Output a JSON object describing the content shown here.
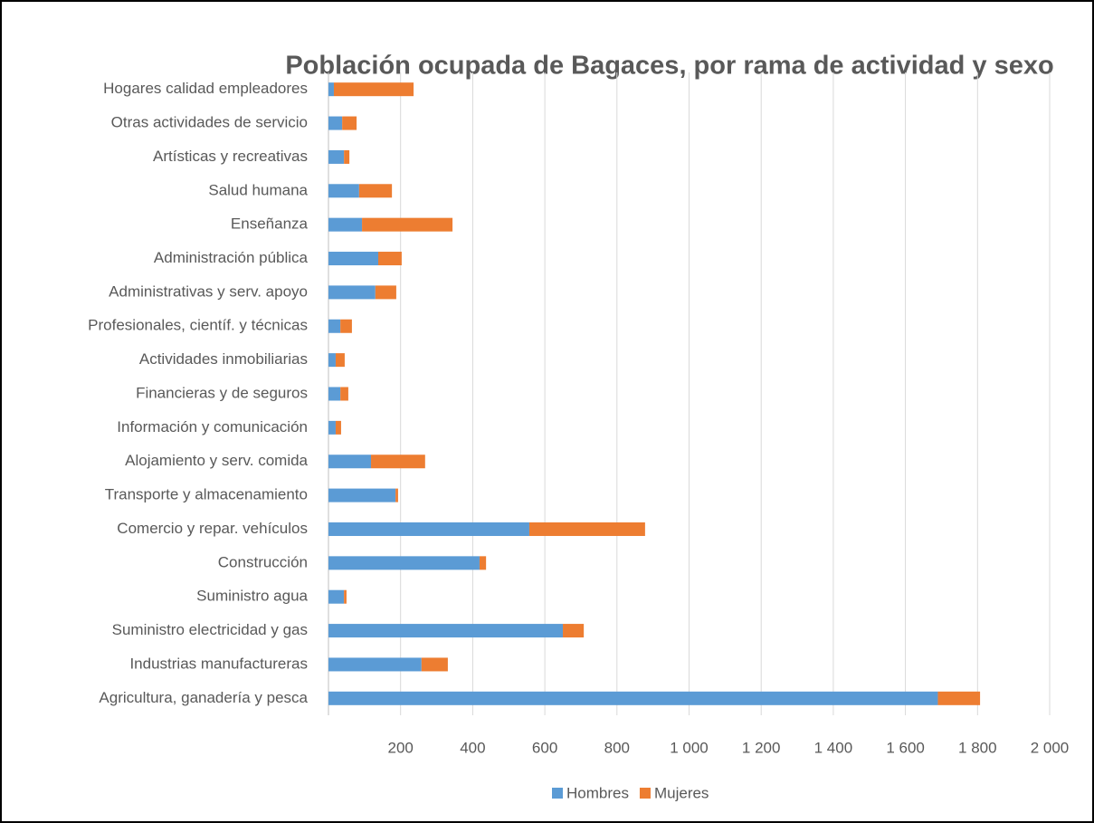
{
  "chart_data": {
    "type": "hbar_stacked",
    "title": "Población ocupada de Bagaces, por rama de actividad y sexo",
    "categories": [
      "Agricultura, ganadería y pesca",
      "Industrias manufactureras",
      "Suministro electricidad y gas",
      "Suministro agua",
      "Construcción",
      "Comercio y repar. vehículos",
      "Transporte y almacenamiento",
      "Alojamiento y serv. comida",
      "Información y comunicación",
      "Financieras y de seguros",
      "Actividades inmobiliarias",
      "Profesionales, científ. y técnicas",
      "Administrativas y serv. apoyo",
      "Administración  pública",
      "Enseñanza",
      "Salud humana",
      "Artísticas y recreativas",
      "Otras actividades de servicio",
      "Hogares calidad empleadores"
    ],
    "series": [
      {
        "name": "Hombres",
        "color": "#5b9bd5",
        "values": [
          1690,
          258,
          650,
          43,
          419,
          557,
          186,
          118,
          20,
          33,
          20,
          33,
          130,
          138,
          93,
          85,
          43,
          38,
          15
        ]
      },
      {
        "name": "Mujeres",
        "color": "#ed7d31",
        "values": [
          117,
          73,
          58,
          7,
          18,
          321,
          7,
          150,
          15,
          22,
          25,
          32,
          58,
          65,
          251,
          91,
          15,
          40,
          221
        ]
      }
    ],
    "xlim": [
      0,
      2000
    ],
    "xticks": [
      200,
      400,
      600,
      800,
      {
        "value": 1000,
        "label": "1 000"
      },
      {
        "value": 1200,
        "label": "1 200"
      },
      {
        "value": 1400,
        "label": "1 400"
      },
      {
        "value": 1600,
        "label": "1 600"
      },
      {
        "value": 1800,
        "label": "1 800"
      },
      {
        "value": 2000,
        "label": "2 000"
      }
    ],
    "grid": true,
    "legend": "bottom"
  }
}
